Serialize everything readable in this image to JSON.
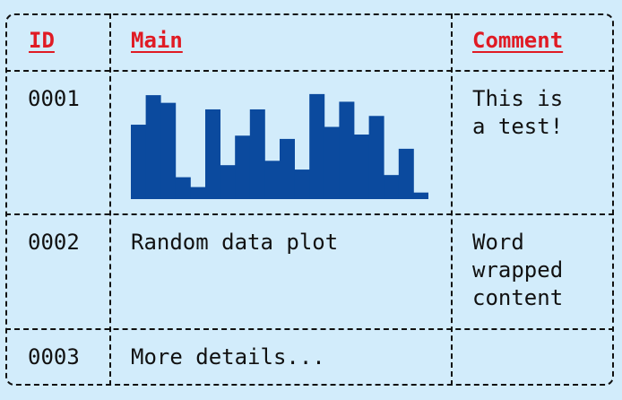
{
  "table": {
    "headers": [
      "ID",
      "Main",
      "Comment"
    ],
    "rows": [
      {
        "id": "0001",
        "main": "",
        "comment": "This is\na test!"
      },
      {
        "id": "0002",
        "main": "Random data plot",
        "comment": "Word\nwrapped\ncontent"
      },
      {
        "id": "0003",
        "main": "More details...",
        "comment": ""
      }
    ]
  },
  "chart_data": {
    "type": "bar",
    "values": [
      6.8,
      9.5,
      8.8,
      2.0,
      1.1,
      8.2,
      3.1,
      5.8,
      8.2,
      3.5,
      5.5,
      2.7,
      9.6,
      6.6,
      8.9,
      5.9,
      7.6,
      2.2,
      4.6,
      0.6
    ],
    "ylim": [
      0,
      10
    ],
    "color": "#0b4a9e"
  }
}
